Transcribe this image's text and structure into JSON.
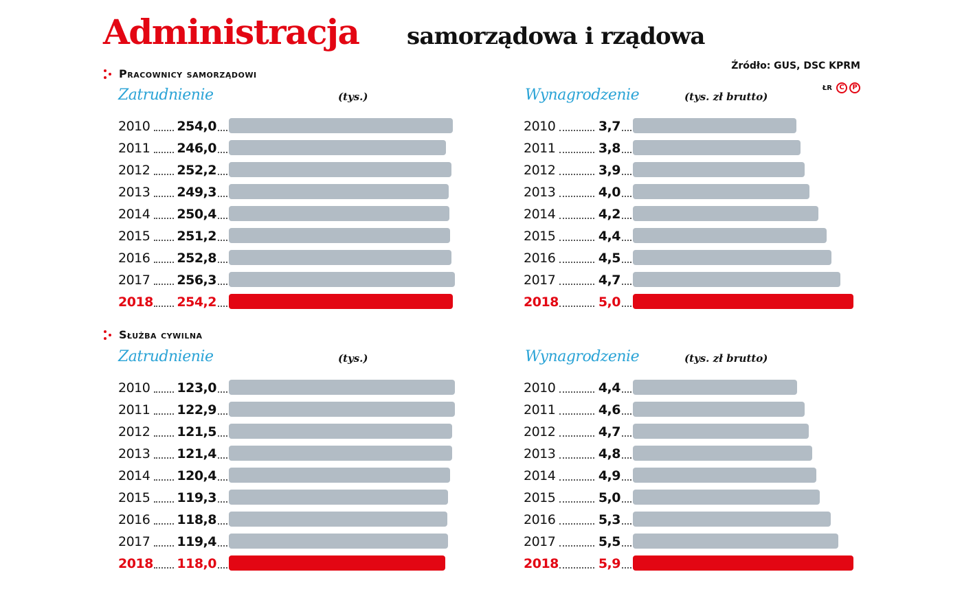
{
  "header": {
    "title": "Administracja",
    "subtitle": "samorządowa i rządowa",
    "source": "Źródło: GUS, DSC KPRM",
    "credit": {
      "initials": "ŁR",
      "icons": [
        "C",
        "P"
      ]
    }
  },
  "colors": {
    "accent": "#e30613",
    "bar": "#b2bcc5",
    "panel_title": "#2aa3d6"
  },
  "sections": [
    {
      "label": "Pracownicy samorządowi"
    },
    {
      "label": "Służba cywilna"
    }
  ],
  "panels": [
    {
      "title": "Zatrudnienie",
      "unit": "(tys.)"
    },
    {
      "title": "Wynagrodzenie",
      "unit": "(tys. zł brutto)"
    },
    {
      "title": "Zatrudnienie",
      "unit": "(tys.)"
    },
    {
      "title": "Wynagrodzenie",
      "unit": "(tys. zł brutto)"
    }
  ],
  "chart_data": [
    {
      "type": "bar",
      "title": "Pracownicy samorządowi — Zatrudnienie",
      "ylabel": "(tys.)",
      "categories": [
        "2010",
        "2011",
        "2012",
        "2013",
        "2014",
        "2015",
        "2016",
        "2017",
        "2018"
      ],
      "values": [
        254.0,
        246.0,
        252.2,
        249.3,
        250.4,
        251.2,
        252.8,
        256.3,
        254.2
      ],
      "labels": [
        "254,0",
        "246,0",
        "252,2",
        "249,3",
        "250,4",
        "251,2",
        "252,8",
        "256,3",
        "254,2"
      ],
      "highlight": "2018",
      "orientation": "horizontal"
    },
    {
      "type": "bar",
      "title": "Pracownicy samorządowi — Wynagrodzenie",
      "ylabel": "(tys. zł brutto)",
      "categories": [
        "2010",
        "2011",
        "2012",
        "2013",
        "2014",
        "2015",
        "2016",
        "2017",
        "2018"
      ],
      "values": [
        3.7,
        3.8,
        3.9,
        4.0,
        4.2,
        4.4,
        4.5,
        4.7,
        5.0
      ],
      "labels": [
        "3,7",
        "3,8",
        "3,9",
        "4,0",
        "4,2",
        "4,4",
        "4,5",
        "4,7",
        "5,0"
      ],
      "highlight": "2018",
      "orientation": "horizontal"
    },
    {
      "type": "bar",
      "title": "Służba cywilna — Zatrudnienie",
      "ylabel": "(tys.)",
      "categories": [
        "2010",
        "2011",
        "2012",
        "2013",
        "2014",
        "2015",
        "2016",
        "2017",
        "2018"
      ],
      "values": [
        123.0,
        122.9,
        121.5,
        121.4,
        120.4,
        119.3,
        118.8,
        119.4,
        118.0
      ],
      "labels": [
        "123,0",
        "122,9",
        "121,5",
        "121,4",
        "120,4",
        "119,3",
        "118,8",
        "119,4",
        "118,0"
      ],
      "highlight": "2018",
      "orientation": "horizontal"
    },
    {
      "type": "bar",
      "title": "Służba cywilna — Wynagrodzenie",
      "ylabel": "(tys. zł brutto)",
      "categories": [
        "2010",
        "2011",
        "2012",
        "2013",
        "2014",
        "2015",
        "2016",
        "2017",
        "2018"
      ],
      "values": [
        4.4,
        4.6,
        4.7,
        4.8,
        4.9,
        5.0,
        5.3,
        5.5,
        5.9
      ],
      "labels": [
        "4,4",
        "4,6",
        "4,7",
        "4,8",
        "4,9",
        "5,0",
        "5,3",
        "5,5",
        "5,9"
      ],
      "highlight": "2018",
      "orientation": "horizontal"
    }
  ]
}
